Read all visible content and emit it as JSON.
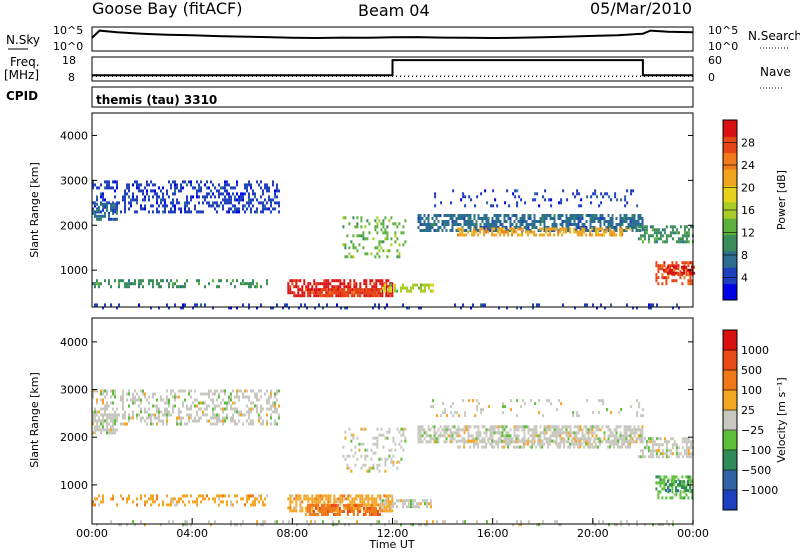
{
  "header": {
    "station": "Goose Bay (fitACF)",
    "beam": "Beam 04",
    "date": "05/Mar/2010"
  },
  "side_labels": {
    "nsky": "N.Sky",
    "nsearch": "N.Search",
    "freq_line1": "Freq.",
    "freq_line2": "[MHz]",
    "nave": "Nave",
    "cpid": "CPID"
  },
  "cpid_text": "themis (tau) 3310",
  "chart_data": [
    {
      "type": "line",
      "name": "noise",
      "left_ticks": [
        "10^5",
        "10^0"
      ],
      "right_ticks": [
        "10^5",
        "10^0"
      ],
      "x_hours": [
        0,
        0.3,
        1,
        2,
        3,
        4,
        5,
        6,
        7,
        8,
        9,
        10,
        11,
        12,
        13,
        14,
        15,
        16,
        17,
        18,
        19,
        20,
        21,
        22,
        22.3,
        23,
        24
      ],
      "nsky_level": [
        0.55,
        0.85,
        0.78,
        0.72,
        0.68,
        0.66,
        0.62,
        0.6,
        0.58,
        0.55,
        0.54,
        0.56,
        0.55,
        0.57,
        0.58,
        0.56,
        0.55,
        0.54,
        0.55,
        0.57,
        0.6,
        0.63,
        0.66,
        0.72,
        0.85,
        0.8,
        0.78
      ]
    },
    {
      "type": "line",
      "name": "frequency",
      "left_ticks": [
        "18",
        "8"
      ],
      "right_ticks": [
        "60",
        "0"
      ],
      "freq_x_hours": [
        0,
        12,
        12,
        22,
        22,
        24
      ],
      "freq_mhz": [
        10.4,
        10.4,
        16.7,
        16.7,
        10.4,
        10.4
      ],
      "nave_level": 0.2
    },
    {
      "type": "heatmap",
      "name": "power",
      "ylabel": "Slant Range [km]",
      "yticks": [
        "1000",
        "2000",
        "3000",
        "4000"
      ],
      "ylim": [
        180,
        4500
      ],
      "xlim": [
        0,
        24
      ],
      "colorbar_label": "Power [dB]",
      "colorbar_ticks": [
        "4",
        "8",
        "12",
        "16",
        "20",
        "24",
        "28"
      ],
      "colorbar_colors": [
        "#0000e6",
        "#1f3fbf",
        "#2b6e8f",
        "#3a8c5a",
        "#5cb03c",
        "#a9cc27",
        "#e6d21a",
        "#f0a31c",
        "#f07a1c",
        "#e64615",
        "#d91010"
      ]
    },
    {
      "type": "heatmap",
      "name": "velocity",
      "ylabel": "Slant Range [km]",
      "yticks": [
        "1000",
        "2000",
        "3000",
        "4000"
      ],
      "ylim": [
        180,
        4500
      ],
      "xlim": [
        0,
        24
      ],
      "colorbar_label": "Velocity [m s⁻¹]",
      "colorbar_ticks": [
        "1000",
        "500",
        "100",
        "25",
        "−25",
        "−100",
        "−500",
        "−1000"
      ],
      "colorbar_colors": [
        "#1c3fbf",
        "#2f64a8",
        "#2f8c5a",
        "#5cc03a",
        "#c8c8c0",
        "#f5a623",
        "#f07818",
        "#e64a15",
        "#d91010"
      ]
    }
  ],
  "x_axis": {
    "ticks": [
      "00:00",
      "04:00",
      "08:00",
      "12:00",
      "16:00",
      "20:00",
      "00:00"
    ],
    "label": "Time UT"
  }
}
